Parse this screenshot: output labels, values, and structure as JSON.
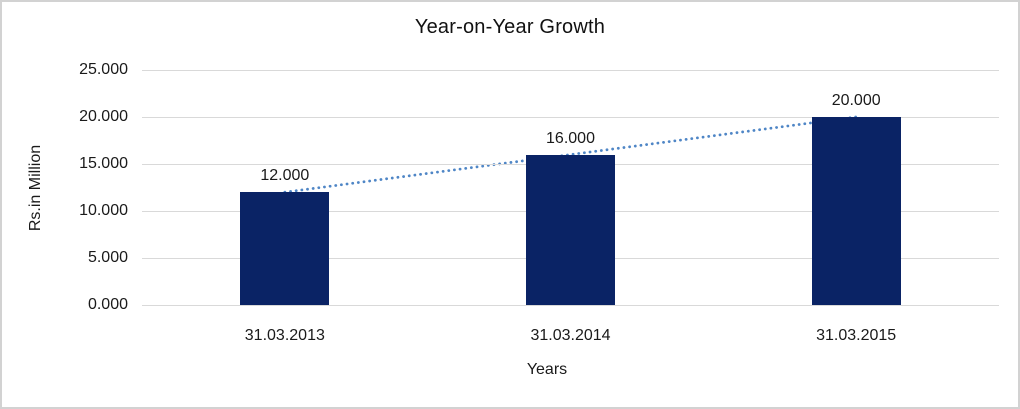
{
  "frame": {
    "border_color": "#d2d2d2",
    "background": "#ffffff"
  },
  "chart_data": {
    "type": "bar",
    "title": "Year-on-Year Growth",
    "xlabel": "Years",
    "ylabel": "Rs.in Million",
    "categories": [
      "31.03.2013",
      "31.03.2014",
      "31.03.2015"
    ],
    "values": [
      12,
      16,
      20
    ],
    "value_labels": [
      "12.000",
      "16.000",
      "20.000"
    ],
    "y_tick_values": [
      25,
      20,
      15,
      10,
      5,
      0
    ],
    "y_tick_labels": [
      "25.000",
      "20.000",
      "15.000",
      "10.000",
      "5.000",
      "0.000"
    ],
    "ylim": [
      0,
      25
    ],
    "grid": true,
    "legend": false,
    "bar_color": "#0a2365",
    "gridline_color": "#d9d9d9",
    "trendline": {
      "type": "linear",
      "style": "dotted",
      "color": "#4f86c6"
    }
  }
}
